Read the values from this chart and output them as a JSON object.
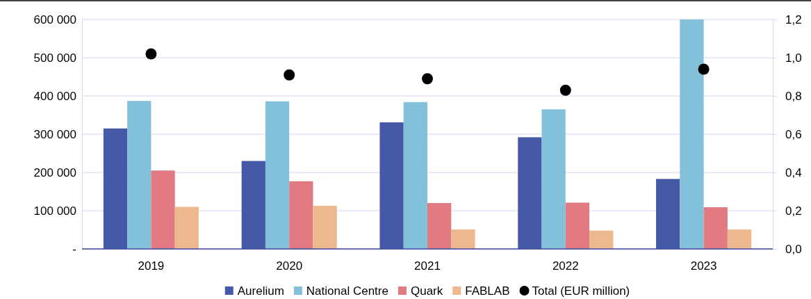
{
  "chart_data": {
    "type": "bar",
    "categories": [
      "2019",
      "2020",
      "2021",
      "2022",
      "2023"
    ],
    "series": [
      {
        "name": "Aurelium",
        "color": "#4659a7",
        "values": [
          315000,
          230000,
          331000,
          292000,
          183000
        ]
      },
      {
        "name": "National Centre",
        "color": "#83c1db",
        "values": [
          387000,
          386000,
          384000,
          365000,
          600000
        ]
      },
      {
        "name": "Quark",
        "color": "#e27a83",
        "values": [
          205000,
          177000,
          120000,
          121000,
          109000
        ]
      },
      {
        "name": "FABLAB",
        "color": "#eeb88e",
        "values": [
          110000,
          113000,
          51000,
          48000,
          51000
        ]
      },
      {
        "name": "Total (EUR million)",
        "type": "scatter",
        "axis": "y2",
        "marker": "circle",
        "color": "#000000",
        "values": [
          1.02,
          0.91,
          0.89,
          0.83,
          0.94
        ]
      }
    ],
    "ylim": [
      0,
      600000
    ],
    "yticks": [
      {
        "value": 0,
        "label": "-"
      },
      {
        "value": 100000,
        "label": "100 000"
      },
      {
        "value": 200000,
        "label": "200 000"
      },
      {
        "value": 300000,
        "label": "300 000"
      },
      {
        "value": 400000,
        "label": "400 000"
      },
      {
        "value": 500000,
        "label": "500 000"
      },
      {
        "value": 600000,
        "label": "600 000"
      }
    ],
    "y2lim": [
      0,
      1.2
    ],
    "y2ticks": [
      {
        "value": 0,
        "label": "0,0"
      },
      {
        "value": 0.2,
        "label": "0,2"
      },
      {
        "value": 0.4,
        "label": "0,4"
      },
      {
        "value": 0.6,
        "label": "0,6"
      },
      {
        "value": 0.8,
        "label": "0,8"
      },
      {
        "value": 1.0,
        "label": "1,0"
      },
      {
        "value": 1.2,
        "label": "1,2"
      }
    ],
    "grid": "y",
    "legend": "bottom"
  }
}
